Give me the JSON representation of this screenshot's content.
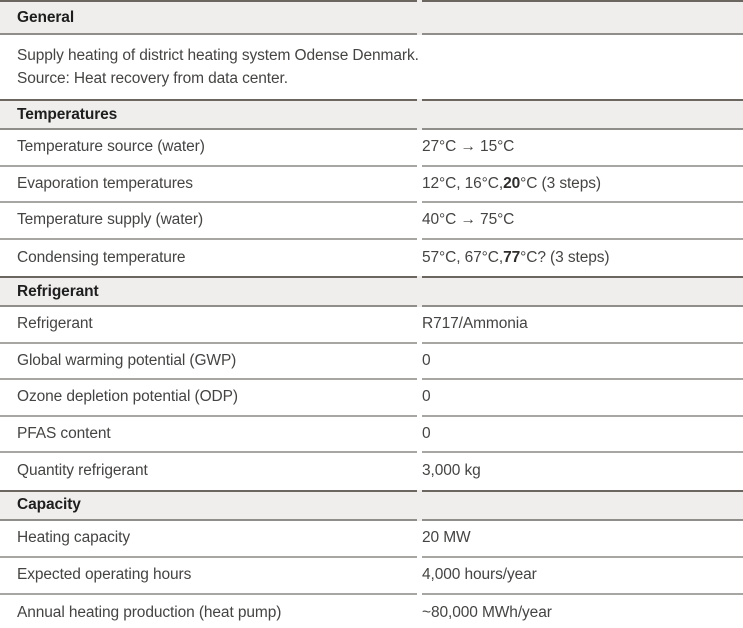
{
  "table": {
    "colors": {
      "band_background": "#efeeec",
      "band_top_border": "#6b665f",
      "band_bottom_border": "#908e8b",
      "row_separator": "#a8a6a3",
      "body_text": "#454443",
      "heading_text": "#1e1e1e"
    },
    "sections": [
      {
        "title": "General",
        "description": {
          "line1": "Supply heating of district heating system Odense Denmark.",
          "line2": "Source: Heat recovery from data center."
        },
        "rows": []
      },
      {
        "title": "Temperatures",
        "rows": [
          {
            "label": "Temperature source (water)",
            "value_prefix": "27°C → 15°C",
            "value_bold": "",
            "value_suffix": ""
          },
          {
            "label": "Evaporation temperatures",
            "value_prefix": "12°C, 16°C, ",
            "value_bold": "20",
            "value_suffix": "°C (3 steps)"
          },
          {
            "label": "Temperature supply (water)",
            "value_prefix": "40°C → 75°C",
            "value_bold": "",
            "value_suffix": ""
          },
          {
            "label": "Condensing temperature",
            "value_prefix": "57°C, 67°C, ",
            "value_bold": "77",
            "value_suffix": "°C? (3 steps)"
          }
        ]
      },
      {
        "title": "Refrigerant",
        "rows": [
          {
            "label": "Refrigerant",
            "value_prefix": "R717/Ammonia",
            "value_bold": "",
            "value_suffix": ""
          },
          {
            "label": "Global warming potential (GWP)",
            "value_prefix": "0",
            "value_bold": "",
            "value_suffix": ""
          },
          {
            "label": "Ozone depletion potential (ODP)",
            "value_prefix": "0",
            "value_bold": "",
            "value_suffix": ""
          },
          {
            "label": "PFAS content",
            "value_prefix": "0",
            "value_bold": "",
            "value_suffix": ""
          },
          {
            "label": "Quantity refrigerant",
            "value_prefix": "3,000 kg",
            "value_bold": "",
            "value_suffix": ""
          }
        ]
      },
      {
        "title": "Capacity",
        "rows": [
          {
            "label": "Heating capacity",
            "value_prefix": "20 MW",
            "value_bold": "",
            "value_suffix": ""
          },
          {
            "label": "Expected operating hours",
            "value_prefix": "4,000 hours/year",
            "value_bold": "",
            "value_suffix": ""
          },
          {
            "label": "Annual heating production (heat pump)",
            "value_prefix": "~80,000 MWh/year",
            "value_bold": "",
            "value_suffix": ""
          }
        ]
      }
    ]
  }
}
